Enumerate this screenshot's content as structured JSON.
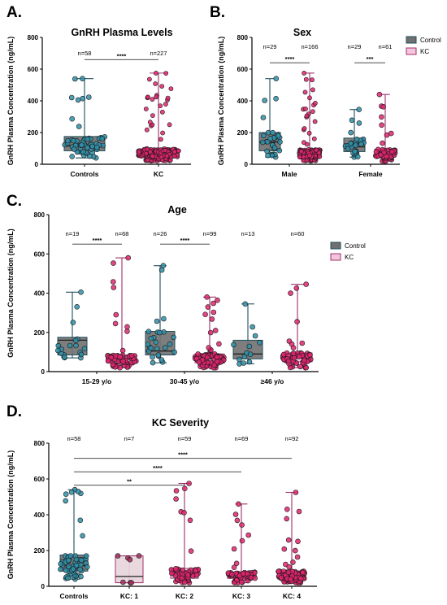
{
  "colors": {
    "control_box": "#707070",
    "control_point": "#2f8fa8",
    "control_whisker": "#1e4f5c",
    "kc_box": "#f4c6dd",
    "kc_point": "#e0246f",
    "kc_whisker": "#a0306a",
    "kc1_box": "#e8d4dc",
    "kc1_point": "#a1305e"
  },
  "chart_data": [
    {
      "panel": "A.",
      "type": "box",
      "title": "GnRH Plasma Levels",
      "ylabel": "GnRH Plasma Concentration (ng/mL)",
      "ylim": [
        0,
        800
      ],
      "yticks": [
        0,
        200,
        400,
        600,
        800
      ],
      "categories": [
        "Controls",
        "KC"
      ],
      "groups": [
        {
          "category": "Controls",
          "group": "control",
          "n_label": "n=58",
          "min": 40,
          "q1": 85,
          "median": 115,
          "q3": 175,
          "max": 540,
          "n": 58
        },
        {
          "category": "KC",
          "group": "kc",
          "n_label": "n=227",
          "min": 20,
          "q1": 45,
          "median": 65,
          "q3": 95,
          "max": 575,
          "n": 227
        }
      ],
      "comparisons": [
        {
          "from": 0,
          "to": 1,
          "label": "****",
          "y": 660
        }
      ]
    },
    {
      "panel": "B.",
      "type": "box",
      "title": "Sex",
      "ylabel": "GnRH Plasma Concentration (ng/mL)",
      "ylim": [
        0,
        800
      ],
      "yticks": [
        0,
        200,
        400,
        600,
        800
      ],
      "categories": [
        "Male",
        "Female"
      ],
      "legend": [
        "Control",
        "KC"
      ],
      "groups": [
        {
          "category": "Male",
          "group": "control",
          "n_label": "n=29",
          "min": 45,
          "q1": 85,
          "median": 140,
          "q3": 200,
          "max": 540,
          "n": 29
        },
        {
          "category": "Male",
          "group": "kc",
          "n_label": "n=166",
          "min": 20,
          "q1": 45,
          "median": 65,
          "q3": 95,
          "max": 575,
          "n": 166
        },
        {
          "category": "Female",
          "group": "control",
          "n_label": "n=29",
          "min": 45,
          "q1": 80,
          "median": 110,
          "q3": 165,
          "max": 345,
          "n": 29
        },
        {
          "category": "Female",
          "group": "kc",
          "n_label": "n=61",
          "min": 20,
          "q1": 45,
          "median": 65,
          "q3": 95,
          "max": 440,
          "n": 61
        }
      ],
      "comparisons": [
        {
          "from": 0,
          "to": 1,
          "label": "****",
          "y": 640
        },
        {
          "from": 2,
          "to": 3,
          "label": "***",
          "y": 640
        }
      ]
    },
    {
      "panel": "C.",
      "type": "box",
      "title": "Age",
      "ylabel": "GnRH Plasma Concentration (ng/mL)",
      "ylim": [
        0,
        800
      ],
      "yticks": [
        0,
        200,
        400,
        600,
        800
      ],
      "categories": [
        "15-29 y/o",
        "30-45 y/o",
        "≥46 y/o"
      ],
      "legend": [
        "Control",
        "KC"
      ],
      "groups": [
        {
          "category": "15-29 y/o",
          "group": "control",
          "n_label": "n=19",
          "min": 70,
          "q1": 85,
          "median": 160,
          "q3": 175,
          "max": 405,
          "n": 19
        },
        {
          "category": "15-29 y/o",
          "group": "kc",
          "n_label": "n=68",
          "min": 20,
          "q1": 45,
          "median": 65,
          "q3": 85,
          "max": 580,
          "n": 68
        },
        {
          "category": "30-45 y/o",
          "group": "control",
          "n_label": "n=26",
          "min": 45,
          "q1": 85,
          "median": 105,
          "q3": 205,
          "max": 540,
          "n": 26
        },
        {
          "category": "30-45 y/o",
          "group": "kc",
          "n_label": "n=99",
          "min": 20,
          "q1": 45,
          "median": 65,
          "q3": 90,
          "max": 380,
          "n": 99
        },
        {
          "category": "≥46 y/o",
          "group": "control",
          "n_label": "n=13",
          "min": 40,
          "q1": 65,
          "median": 90,
          "q3": 160,
          "max": 345,
          "n": 13
        },
        {
          "category": "≥46 y/o",
          "group": "kc",
          "n_label": "n=60",
          "min": 20,
          "q1": 50,
          "median": 70,
          "q3": 95,
          "max": 445,
          "n": 60
        }
      ],
      "comparisons": [
        {
          "from": 0,
          "to": 1,
          "label": "****",
          "y": 650
        },
        {
          "from": 2,
          "to": 3,
          "label": "****",
          "y": 650
        }
      ]
    },
    {
      "panel": "D.",
      "type": "box",
      "title": "KC Severity",
      "ylabel": "GnRH Plasma Concentration (ng/mL)",
      "ylim": [
        0,
        800
      ],
      "yticks": [
        0,
        200,
        400,
        600,
        800
      ],
      "categories": [
        "Controls",
        "KC: 1",
        "KC: 2",
        "KC: 3",
        "KC: 4"
      ],
      "groups": [
        {
          "category": "Controls",
          "group": "control",
          "n_label": "n=58",
          "min": 40,
          "q1": 85,
          "median": 115,
          "q3": 175,
          "max": 540,
          "n": 58
        },
        {
          "category": "KC: 1",
          "group": "kc1",
          "n_label": "n=7",
          "min": 20,
          "q1": 20,
          "median": 55,
          "q3": 170,
          "max": 170,
          "n": 7
        },
        {
          "category": "KC: 2",
          "group": "kc",
          "n_label": "n=59",
          "min": 20,
          "q1": 45,
          "median": 70,
          "q3": 100,
          "max": 575,
          "n": 59
        },
        {
          "category": "KC: 3",
          "group": "kc",
          "n_label": "n=69",
          "min": 20,
          "q1": 45,
          "median": 65,
          "q3": 80,
          "max": 460,
          "n": 69
        },
        {
          "category": "KC: 4",
          "group": "kc",
          "n_label": "n=92",
          "min": 20,
          "q1": 40,
          "median": 60,
          "q3": 85,
          "max": 525,
          "n": 92
        }
      ],
      "comparisons": [
        {
          "from": 0,
          "to": 2,
          "label": "**",
          "y": 565
        },
        {
          "from": 0,
          "to": 3,
          "label": "****",
          "y": 640
        },
        {
          "from": 0,
          "to": 4,
          "label": "****",
          "y": 715
        }
      ]
    }
  ]
}
